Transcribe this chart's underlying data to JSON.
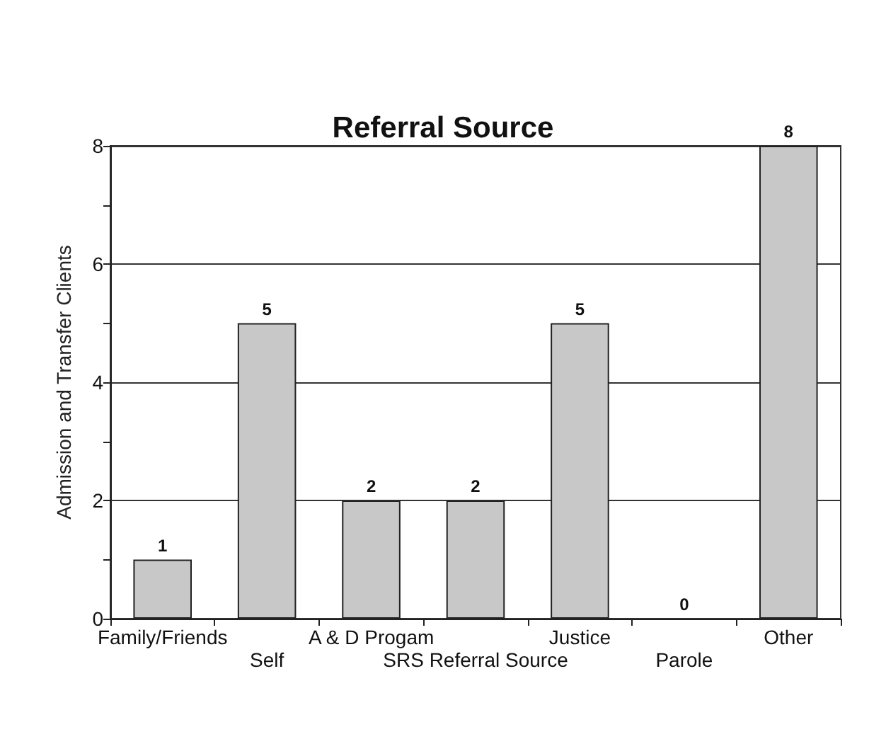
{
  "chart_data": {
    "type": "bar",
    "title": "Referral Source",
    "ylabel": "Admission and Transfer Clients",
    "categories": [
      "Family/Friends",
      "Self",
      "A & D Progam",
      "SRS Referral Source",
      "Justice",
      "Parole",
      "Other"
    ],
    "values": [
      1,
      5,
      2,
      2,
      5,
      0,
      8
    ],
    "color": "#c8c8c8",
    "data_labels": true,
    "ylim": [
      0,
      8
    ],
    "yticks": [
      0,
      {
        "value": 1,
        "label": null
      },
      2,
      {
        "value": 3,
        "label": null
      },
      4,
      {
        "value": 5,
        "label": null
      },
      6,
      {
        "value": 7,
        "label": null
      },
      8
    ],
    "grid": "y"
  }
}
